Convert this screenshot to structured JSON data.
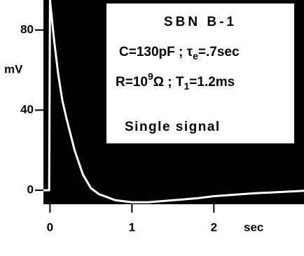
{
  "chart_data": {
    "type": "line",
    "x_label": "sec",
    "y_label": "mV",
    "annotations": [
      [
        "SBN B-1"
      ],
      [
        "C=130pF ; τ",
        "e",
        "=.7sec"
      ],
      [
        "R=10",
        "9",
        "Ω ; T",
        "1",
        "=1.2ms"
      ],
      [
        "Single signal"
      ]
    ],
    "x": [
      -0.08,
      -0.01,
      0,
      0.05,
      0.1,
      0.15,
      0.2,
      0.3,
      0.4,
      0.5,
      0.6,
      0.8,
      1.0,
      1.2,
      1.5,
      1.8,
      2.0,
      2.5,
      3.0,
      3.1
    ],
    "series": [
      {
        "name": "Single signal",
        "color": "#ffffff",
        "values": [
          0,
          0,
          95,
          75,
          58,
          45,
          36,
          20,
          8,
          1,
          -2,
          -5,
          -6,
          -6,
          -5,
          -4,
          -3,
          -1.5,
          -0.5,
          -0.3
        ]
      }
    ],
    "xlim": [
      -0.08,
      3.1
    ],
    "ylim": [
      -7,
      95
    ],
    "xticks": [
      0,
      1,
      2
    ],
    "yticks": [
      0,
      40,
      80
    ],
    "background": "#000000"
  }
}
